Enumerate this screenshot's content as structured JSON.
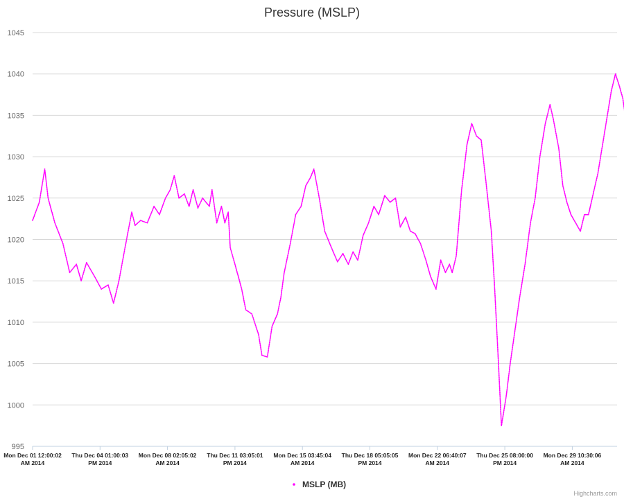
{
  "chart_data": {
    "type": "scatter",
    "title": "Pressure (MSLP)",
    "xlabel": "",
    "ylabel": "",
    "ylim": [
      995,
      1045
    ],
    "yticks": [
      995,
      1000,
      1005,
      1010,
      1015,
      1020,
      1025,
      1030,
      1035,
      1040,
      1045
    ],
    "xticks": [
      {
        "line1": "Mon Dec 01 12:00:02",
        "line2": "AM 2014"
      },
      {
        "line1": "Thu Dec 04 01:00:03",
        "line2": "PM 2014"
      },
      {
        "line1": "Mon Dec 08 02:05:02",
        "line2": "AM 2014"
      },
      {
        "line1": "Thu Dec 11 03:05:01",
        "line2": "PM 2014"
      },
      {
        "line1": "Mon Dec 15 03:45:04",
        "line2": "AM 2014"
      },
      {
        "line1": "Thu Dec 18 05:05:05",
        "line2": "PM 2014"
      },
      {
        "line1": "Mon Dec 22 06:40:07",
        "line2": "AM 2014"
      },
      {
        "line1": "Thu Dec 25 08:00:00",
        "line2": "PM 2014"
      },
      {
        "line1": "Mon Dec 29 10:30:06",
        "line2": "AM 2014"
      }
    ],
    "xlim": [
      0,
      9.0
    ],
    "grid": true,
    "legend_position": "bottom-center",
    "series": [
      {
        "name": "MSLP (MB)",
        "color": "#ff00ff",
        "keypoints": [
          [
            0.0,
            1022.3
          ],
          [
            0.1,
            1024.5
          ],
          [
            0.18,
            1028.5
          ],
          [
            0.23,
            1025.0
          ],
          [
            0.33,
            1022.0
          ],
          [
            0.45,
            1019.5
          ],
          [
            0.55,
            1016.0
          ],
          [
            0.65,
            1017.0
          ],
          [
            0.72,
            1015.0
          ],
          [
            0.8,
            1017.2
          ],
          [
            0.92,
            1015.5
          ],
          [
            1.02,
            1014.0
          ],
          [
            1.12,
            1014.5
          ],
          [
            1.2,
            1012.3
          ],
          [
            1.28,
            1015.0
          ],
          [
            1.37,
            1019.0
          ],
          [
            1.47,
            1023.3
          ],
          [
            1.52,
            1021.7
          ],
          [
            1.6,
            1022.3
          ],
          [
            1.7,
            1022.0
          ],
          [
            1.8,
            1024.0
          ],
          [
            1.88,
            1023.0
          ],
          [
            1.97,
            1025.0
          ],
          [
            2.04,
            1026.0
          ],
          [
            2.1,
            1027.7
          ],
          [
            2.17,
            1025.0
          ],
          [
            2.25,
            1025.5
          ],
          [
            2.32,
            1024.0
          ],
          [
            2.38,
            1026.0
          ],
          [
            2.45,
            1023.8
          ],
          [
            2.52,
            1025.0
          ],
          [
            2.62,
            1024.0
          ],
          [
            2.66,
            1026.0
          ],
          [
            2.73,
            1022.0
          ],
          [
            2.8,
            1024.0
          ],
          [
            2.85,
            1022.0
          ],
          [
            2.9,
            1023.3
          ],
          [
            2.93,
            1019.0
          ],
          [
            3.0,
            1017.0
          ],
          [
            3.1,
            1014.0
          ],
          [
            3.16,
            1011.5
          ],
          [
            3.25,
            1011.0
          ],
          [
            3.35,
            1008.5
          ],
          [
            3.4,
            1006.0
          ],
          [
            3.48,
            1005.8
          ],
          [
            3.55,
            1009.5
          ],
          [
            3.63,
            1011.0
          ],
          [
            3.68,
            1013.0
          ],
          [
            3.73,
            1016.0
          ],
          [
            3.82,
            1019.5
          ],
          [
            3.9,
            1023.0
          ],
          [
            3.98,
            1024.0
          ],
          [
            4.05,
            1026.5
          ],
          [
            4.12,
            1027.5
          ],
          [
            4.17,
            1028.5
          ],
          [
            4.25,
            1025.0
          ],
          [
            4.33,
            1021.0
          ],
          [
            4.43,
            1019.0
          ],
          [
            4.52,
            1017.3
          ],
          [
            4.6,
            1018.3
          ],
          [
            4.68,
            1017.0
          ],
          [
            4.75,
            1018.5
          ],
          [
            4.82,
            1017.5
          ],
          [
            4.9,
            1020.5
          ],
          [
            4.98,
            1022.0
          ],
          [
            5.06,
            1024.0
          ],
          [
            5.13,
            1023.0
          ],
          [
            5.22,
            1025.3
          ],
          [
            5.3,
            1024.5
          ],
          [
            5.38,
            1025.0
          ],
          [
            5.45,
            1021.5
          ],
          [
            5.53,
            1022.7
          ],
          [
            5.6,
            1021.0
          ],
          [
            5.67,
            1020.7
          ],
          [
            5.75,
            1019.5
          ],
          [
            5.83,
            1017.5
          ],
          [
            5.9,
            1015.5
          ],
          [
            5.98,
            1014.0
          ],
          [
            6.05,
            1017.5
          ],
          [
            6.12,
            1016.0
          ],
          [
            6.18,
            1017.0
          ],
          [
            6.22,
            1016.0
          ],
          [
            6.28,
            1018.0
          ],
          [
            6.36,
            1026.0
          ],
          [
            6.44,
            1031.5
          ],
          [
            6.51,
            1034.0
          ],
          [
            6.58,
            1032.5
          ],
          [
            6.65,
            1032.0
          ],
          [
            6.72,
            1027.0
          ],
          [
            6.8,
            1021.0
          ],
          [
            6.85,
            1014.0
          ],
          [
            6.9,
            1006.0
          ],
          [
            6.95,
            997.5
          ],
          [
            7.02,
            1001.0
          ],
          [
            7.08,
            1005.0
          ],
          [
            7.15,
            1009.0
          ],
          [
            7.22,
            1013.0
          ],
          [
            7.3,
            1017.0
          ],
          [
            7.38,
            1022.0
          ],
          [
            7.45,
            1025.0
          ],
          [
            7.52,
            1030.0
          ],
          [
            7.6,
            1034.0
          ],
          [
            7.67,
            1036.3
          ],
          [
            7.72,
            1034.5
          ],
          [
            7.8,
            1031.0
          ],
          [
            7.86,
            1026.5
          ],
          [
            7.92,
            1024.5
          ],
          [
            7.98,
            1023.0
          ],
          [
            8.05,
            1022.0
          ],
          [
            8.12,
            1021.0
          ],
          [
            8.18,
            1023.0
          ],
          [
            8.24,
            1023.0
          ],
          [
            8.31,
            1025.5
          ],
          [
            8.38,
            1028.0
          ],
          [
            8.46,
            1032.0
          ],
          [
            8.52,
            1035.0
          ],
          [
            8.58,
            1038.0
          ],
          [
            8.64,
            1040.0
          ],
          [
            8.7,
            1038.5
          ],
          [
            8.75,
            1037.0
          ],
          [
            8.82,
            1033.0
          ],
          [
            8.88,
            1032.0
          ],
          [
            8.92,
            1030.5
          ]
        ]
      }
    ]
  },
  "credits": "Highcharts.com"
}
